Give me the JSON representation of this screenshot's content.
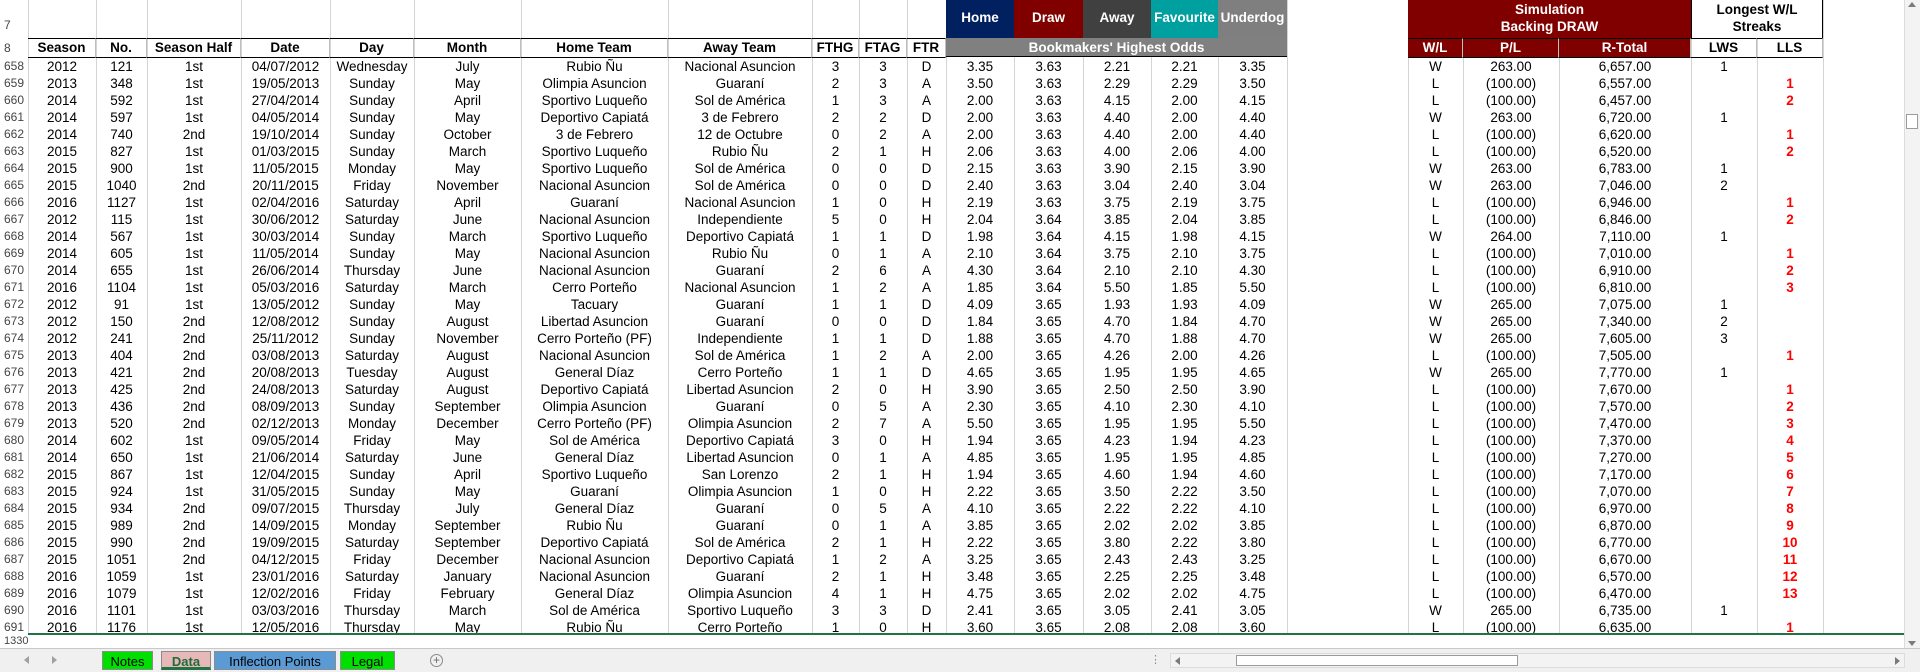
{
  "top_headers": {
    "home": "Home",
    "draw": "Draw",
    "away": "Away",
    "favourite": "Favourite",
    "underdog": "Underdog",
    "bookmakers": "Bookmakers' Highest Odds",
    "simulation_line1": "Simulation",
    "simulation_line2": "Backing DRAW",
    "streaks_line1": "Longest W/L",
    "streaks_line2": "Streaks"
  },
  "columns": [
    "Season",
    "No.",
    "Season Half",
    "Date",
    "Day",
    "Month",
    "Home Team",
    "Away Team",
    "FTHG",
    "FTAG",
    "FTR"
  ],
  "sim_columns": [
    "W/L",
    "P/L",
    "R-Total"
  ],
  "streak_columns": [
    "LWS",
    "LLS"
  ],
  "header_row_numbers": [
    "7",
    "8"
  ],
  "rows": [
    [
      "658",
      "2012",
      "121",
      "1st",
      "04/07/2012",
      "Wednesday",
      "July",
      "Rubio Ñu",
      "Nacional Asuncion",
      "3",
      "3",
      "D",
      "3.35",
      "3.63",
      "2.21",
      "2.21",
      "3.35",
      "W",
      "263.00",
      "6,657.00",
      "1",
      ""
    ],
    [
      "659",
      "2013",
      "348",
      "1st",
      "19/05/2013",
      "Sunday",
      "May",
      "Olimpia Asuncion",
      "Guaraní",
      "2",
      "3",
      "A",
      "3.50",
      "3.63",
      "2.29",
      "2.29",
      "3.50",
      "L",
      "(100.00)",
      "6,557.00",
      "",
      "1"
    ],
    [
      "660",
      "2014",
      "592",
      "1st",
      "27/04/2014",
      "Sunday",
      "April",
      "Sportivo Luqueño",
      "Sol de América",
      "1",
      "3",
      "A",
      "2.00",
      "3.63",
      "4.15",
      "2.00",
      "4.15",
      "L",
      "(100.00)",
      "6,457.00",
      "",
      "2"
    ],
    [
      "661",
      "2014",
      "597",
      "1st",
      "04/05/2014",
      "Sunday",
      "May",
      "Deportivo Capiatá",
      "3 de Febrero",
      "2",
      "2",
      "D",
      "2.00",
      "3.63",
      "4.40",
      "2.00",
      "4.40",
      "W",
      "263.00",
      "6,720.00",
      "1",
      ""
    ],
    [
      "662",
      "2014",
      "740",
      "2nd",
      "19/10/2014",
      "Sunday",
      "October",
      "3 de Febrero",
      "12 de Octubre",
      "0",
      "2",
      "A",
      "2.00",
      "3.63",
      "4.40",
      "2.00",
      "4.40",
      "L",
      "(100.00)",
      "6,620.00",
      "",
      "1"
    ],
    [
      "663",
      "2015",
      "827",
      "1st",
      "01/03/2015",
      "Sunday",
      "March",
      "Sportivo Luqueño",
      "Rubio Ñu",
      "2",
      "1",
      "H",
      "2.06",
      "3.63",
      "4.00",
      "2.06",
      "4.00",
      "L",
      "(100.00)",
      "6,520.00",
      "",
      "2"
    ],
    [
      "664",
      "2015",
      "900",
      "1st",
      "11/05/2015",
      "Monday",
      "May",
      "Sportivo Luqueño",
      "Sol de América",
      "0",
      "0",
      "D",
      "2.15",
      "3.63",
      "3.90",
      "2.15",
      "3.90",
      "W",
      "263.00",
      "6,783.00",
      "1",
      ""
    ],
    [
      "665",
      "2015",
      "1040",
      "2nd",
      "20/11/2015",
      "Friday",
      "November",
      "Nacional Asuncion",
      "Sol de América",
      "0",
      "0",
      "D",
      "2.40",
      "3.63",
      "3.04",
      "2.40",
      "3.04",
      "W",
      "263.00",
      "7,046.00",
      "2",
      ""
    ],
    [
      "666",
      "2016",
      "1127",
      "1st",
      "02/04/2016",
      "Saturday",
      "April",
      "Guaraní",
      "Nacional Asuncion",
      "1",
      "0",
      "H",
      "2.19",
      "3.63",
      "3.75",
      "2.19",
      "3.75",
      "L",
      "(100.00)",
      "6,946.00",
      "",
      "1"
    ],
    [
      "667",
      "2012",
      "115",
      "1st",
      "30/06/2012",
      "Saturday",
      "June",
      "Nacional Asuncion",
      "Independiente",
      "5",
      "0",
      "H",
      "2.04",
      "3.64",
      "3.85",
      "2.04",
      "3.85",
      "L",
      "(100.00)",
      "6,846.00",
      "",
      "2"
    ],
    [
      "668",
      "2014",
      "567",
      "1st",
      "30/03/2014",
      "Sunday",
      "March",
      "Sportivo Luqueño",
      "Deportivo Capiatá",
      "1",
      "1",
      "D",
      "1.98",
      "3.64",
      "4.15",
      "1.98",
      "4.15",
      "W",
      "264.00",
      "7,110.00",
      "1",
      ""
    ],
    [
      "669",
      "2014",
      "605",
      "1st",
      "11/05/2014",
      "Sunday",
      "May",
      "Nacional Asuncion",
      "Rubio Ñu",
      "0",
      "1",
      "A",
      "2.10",
      "3.64",
      "3.75",
      "2.10",
      "3.75",
      "L",
      "(100.00)",
      "7,010.00",
      "",
      "1"
    ],
    [
      "670",
      "2014",
      "655",
      "1st",
      "26/06/2014",
      "Thursday",
      "June",
      "Nacional Asuncion",
      "Guaraní",
      "2",
      "6",
      "A",
      "4.30",
      "3.64",
      "2.10",
      "2.10",
      "4.30",
      "L",
      "(100.00)",
      "6,910.00",
      "",
      "2"
    ],
    [
      "671",
      "2016",
      "1104",
      "1st",
      "05/03/2016",
      "Saturday",
      "March",
      "Cerro Porteño",
      "Nacional Asuncion",
      "1",
      "2",
      "A",
      "1.85",
      "3.64",
      "5.50",
      "1.85",
      "5.50",
      "L",
      "(100.00)",
      "6,810.00",
      "",
      "3"
    ],
    [
      "672",
      "2012",
      "91",
      "1st",
      "13/05/2012",
      "Sunday",
      "May",
      "Tacuary",
      "Guaraní",
      "1",
      "1",
      "D",
      "4.09",
      "3.65",
      "1.93",
      "1.93",
      "4.09",
      "W",
      "265.00",
      "7,075.00",
      "1",
      ""
    ],
    [
      "673",
      "2012",
      "150",
      "2nd",
      "12/08/2012",
      "Sunday",
      "August",
      "Libertad Asuncion",
      "Guaraní",
      "0",
      "0",
      "D",
      "1.84",
      "3.65",
      "4.70",
      "1.84",
      "4.70",
      "W",
      "265.00",
      "7,340.00",
      "2",
      ""
    ],
    [
      "674",
      "2012",
      "241",
      "2nd",
      "25/11/2012",
      "Sunday",
      "November",
      "Cerro Porteño (PF)",
      "Independiente",
      "1",
      "1",
      "D",
      "1.88",
      "3.65",
      "4.70",
      "1.88",
      "4.70",
      "W",
      "265.00",
      "7,605.00",
      "3",
      ""
    ],
    [
      "675",
      "2013",
      "404",
      "2nd",
      "03/08/2013",
      "Saturday",
      "August",
      "Nacional Asuncion",
      "Sol de América",
      "1",
      "2",
      "A",
      "2.00",
      "3.65",
      "4.26",
      "2.00",
      "4.26",
      "L",
      "(100.00)",
      "7,505.00",
      "",
      "1"
    ],
    [
      "676",
      "2013",
      "421",
      "2nd",
      "20/08/2013",
      "Tuesday",
      "August",
      "General Díaz",
      "Cerro Porteño",
      "1",
      "1",
      "D",
      "4.65",
      "3.65",
      "1.95",
      "1.95",
      "4.65",
      "W",
      "265.00",
      "7,770.00",
      "1",
      ""
    ],
    [
      "677",
      "2013",
      "425",
      "2nd",
      "24/08/2013",
      "Saturday",
      "August",
      "Deportivo Capiatá",
      "Libertad Asuncion",
      "2",
      "0",
      "H",
      "3.90",
      "3.65",
      "2.50",
      "2.50",
      "3.90",
      "L",
      "(100.00)",
      "7,670.00",
      "",
      "1"
    ],
    [
      "678",
      "2013",
      "436",
      "2nd",
      "08/09/2013",
      "Sunday",
      "September",
      "Olimpia Asuncion",
      "Guaraní",
      "0",
      "5",
      "A",
      "2.30",
      "3.65",
      "4.10",
      "2.30",
      "4.10",
      "L",
      "(100.00)",
      "7,570.00",
      "",
      "2"
    ],
    [
      "679",
      "2013",
      "520",
      "2nd",
      "02/12/2013",
      "Monday",
      "December",
      "Cerro Porteño (PF)",
      "Olimpia Asuncion",
      "2",
      "7",
      "A",
      "5.50",
      "3.65",
      "1.95",
      "1.95",
      "5.50",
      "L",
      "(100.00)",
      "7,470.00",
      "",
      "3"
    ],
    [
      "680",
      "2014",
      "602",
      "1st",
      "09/05/2014",
      "Friday",
      "May",
      "Sol de América",
      "Deportivo Capiatá",
      "3",
      "0",
      "H",
      "1.94",
      "3.65",
      "4.23",
      "1.94",
      "4.23",
      "L",
      "(100.00)",
      "7,370.00",
      "",
      "4"
    ],
    [
      "681",
      "2014",
      "650",
      "1st",
      "21/06/2014",
      "Saturday",
      "June",
      "General Díaz",
      "Libertad Asuncion",
      "0",
      "1",
      "A",
      "4.85",
      "3.65",
      "1.95",
      "1.95",
      "4.85",
      "L",
      "(100.00)",
      "7,270.00",
      "",
      "5"
    ],
    [
      "682",
      "2015",
      "867",
      "1st",
      "12/04/2015",
      "Sunday",
      "April",
      "Sportivo Luqueño",
      "San Lorenzo",
      "2",
      "1",
      "H",
      "1.94",
      "3.65",
      "4.60",
      "1.94",
      "4.60",
      "L",
      "(100.00)",
      "7,170.00",
      "",
      "6"
    ],
    [
      "683",
      "2015",
      "924",
      "1st",
      "31/05/2015",
      "Sunday",
      "May",
      "Guaraní",
      "Olimpia Asuncion",
      "1",
      "0",
      "H",
      "2.22",
      "3.65",
      "3.50",
      "2.22",
      "3.50",
      "L",
      "(100.00)",
      "7,070.00",
      "",
      "7"
    ],
    [
      "684",
      "2015",
      "934",
      "2nd",
      "09/07/2015",
      "Thursday",
      "July",
      "General Díaz",
      "Guaraní",
      "0",
      "5",
      "A",
      "4.10",
      "3.65",
      "2.22",
      "2.22",
      "4.10",
      "L",
      "(100.00)",
      "6,970.00",
      "",
      "8"
    ],
    [
      "685",
      "2015",
      "989",
      "2nd",
      "14/09/2015",
      "Monday",
      "September",
      "Rubio Ñu",
      "Guaraní",
      "0",
      "1",
      "A",
      "3.85",
      "3.65",
      "2.02",
      "2.02",
      "3.85",
      "L",
      "(100.00)",
      "6,870.00",
      "",
      "9"
    ],
    [
      "686",
      "2015",
      "990",
      "2nd",
      "19/09/2015",
      "Saturday",
      "September",
      "Deportivo Capiatá",
      "Sol de América",
      "2",
      "1",
      "H",
      "2.22",
      "3.65",
      "3.80",
      "2.22",
      "3.80",
      "L",
      "(100.00)",
      "6,770.00",
      "",
      "10"
    ],
    [
      "687",
      "2015",
      "1051",
      "2nd",
      "04/12/2015",
      "Friday",
      "December",
      "Nacional Asuncion",
      "Deportivo Capiatá",
      "1",
      "2",
      "A",
      "3.25",
      "3.65",
      "2.43",
      "2.43",
      "3.25",
      "L",
      "(100.00)",
      "6,670.00",
      "",
      "11"
    ],
    [
      "688",
      "2016",
      "1059",
      "1st",
      "23/01/2016",
      "Saturday",
      "January",
      "Nacional Asuncion",
      "Guaraní",
      "2",
      "1",
      "H",
      "3.48",
      "3.65",
      "2.25",
      "2.25",
      "3.48",
      "L",
      "(100.00)",
      "6,570.00",
      "",
      "12"
    ],
    [
      "689",
      "2016",
      "1079",
      "1st",
      "12/02/2016",
      "Friday",
      "February",
      "General Díaz",
      "Olimpia Asuncion",
      "4",
      "1",
      "H",
      "4.75",
      "3.65",
      "2.02",
      "2.02",
      "4.75",
      "L",
      "(100.00)",
      "6,470.00",
      "",
      "13"
    ],
    [
      "690",
      "2016",
      "1101",
      "1st",
      "03/03/2016",
      "Thursday",
      "March",
      "Sol de América",
      "Sportivo Luqueño",
      "3",
      "3",
      "D",
      "2.41",
      "3.65",
      "3.05",
      "2.41",
      "3.05",
      "W",
      "265.00",
      "6,735.00",
      "1",
      ""
    ],
    [
      "691",
      "2016",
      "1176",
      "1st",
      "12/05/2016",
      "Thursday",
      "May",
      "Rubio Ñu",
      "Cerro Porteño",
      "1",
      "0",
      "H",
      "3.60",
      "3.65",
      "2.08",
      "2.08",
      "3.60",
      "L",
      "(100.00)",
      "6,635.00",
      "",
      "1"
    ]
  ],
  "last_row_number": "1330",
  "tabs": [
    {
      "label": "Notes",
      "bg": "#00e000",
      "active": false
    },
    {
      "label": "Data",
      "bg": "#e6b8b7",
      "active": true
    },
    {
      "label": "Inflection Points",
      "bg": "#5b9bd5",
      "active": false
    },
    {
      "label": "Legal",
      "bg": "#00e000",
      "active": false
    }
  ],
  "add_sheet_icon": "plus-circle-icon",
  "colors": {
    "home_bg": "#002060",
    "draw_bg": "#800000",
    "away_bg": "#404040",
    "favourite_bg": "#00a0a0",
    "underdog_bg": "#7f7f7f",
    "bookmakers_bg": "#808080",
    "sim_bg": "#800000",
    "negative": "#ff0000"
  }
}
